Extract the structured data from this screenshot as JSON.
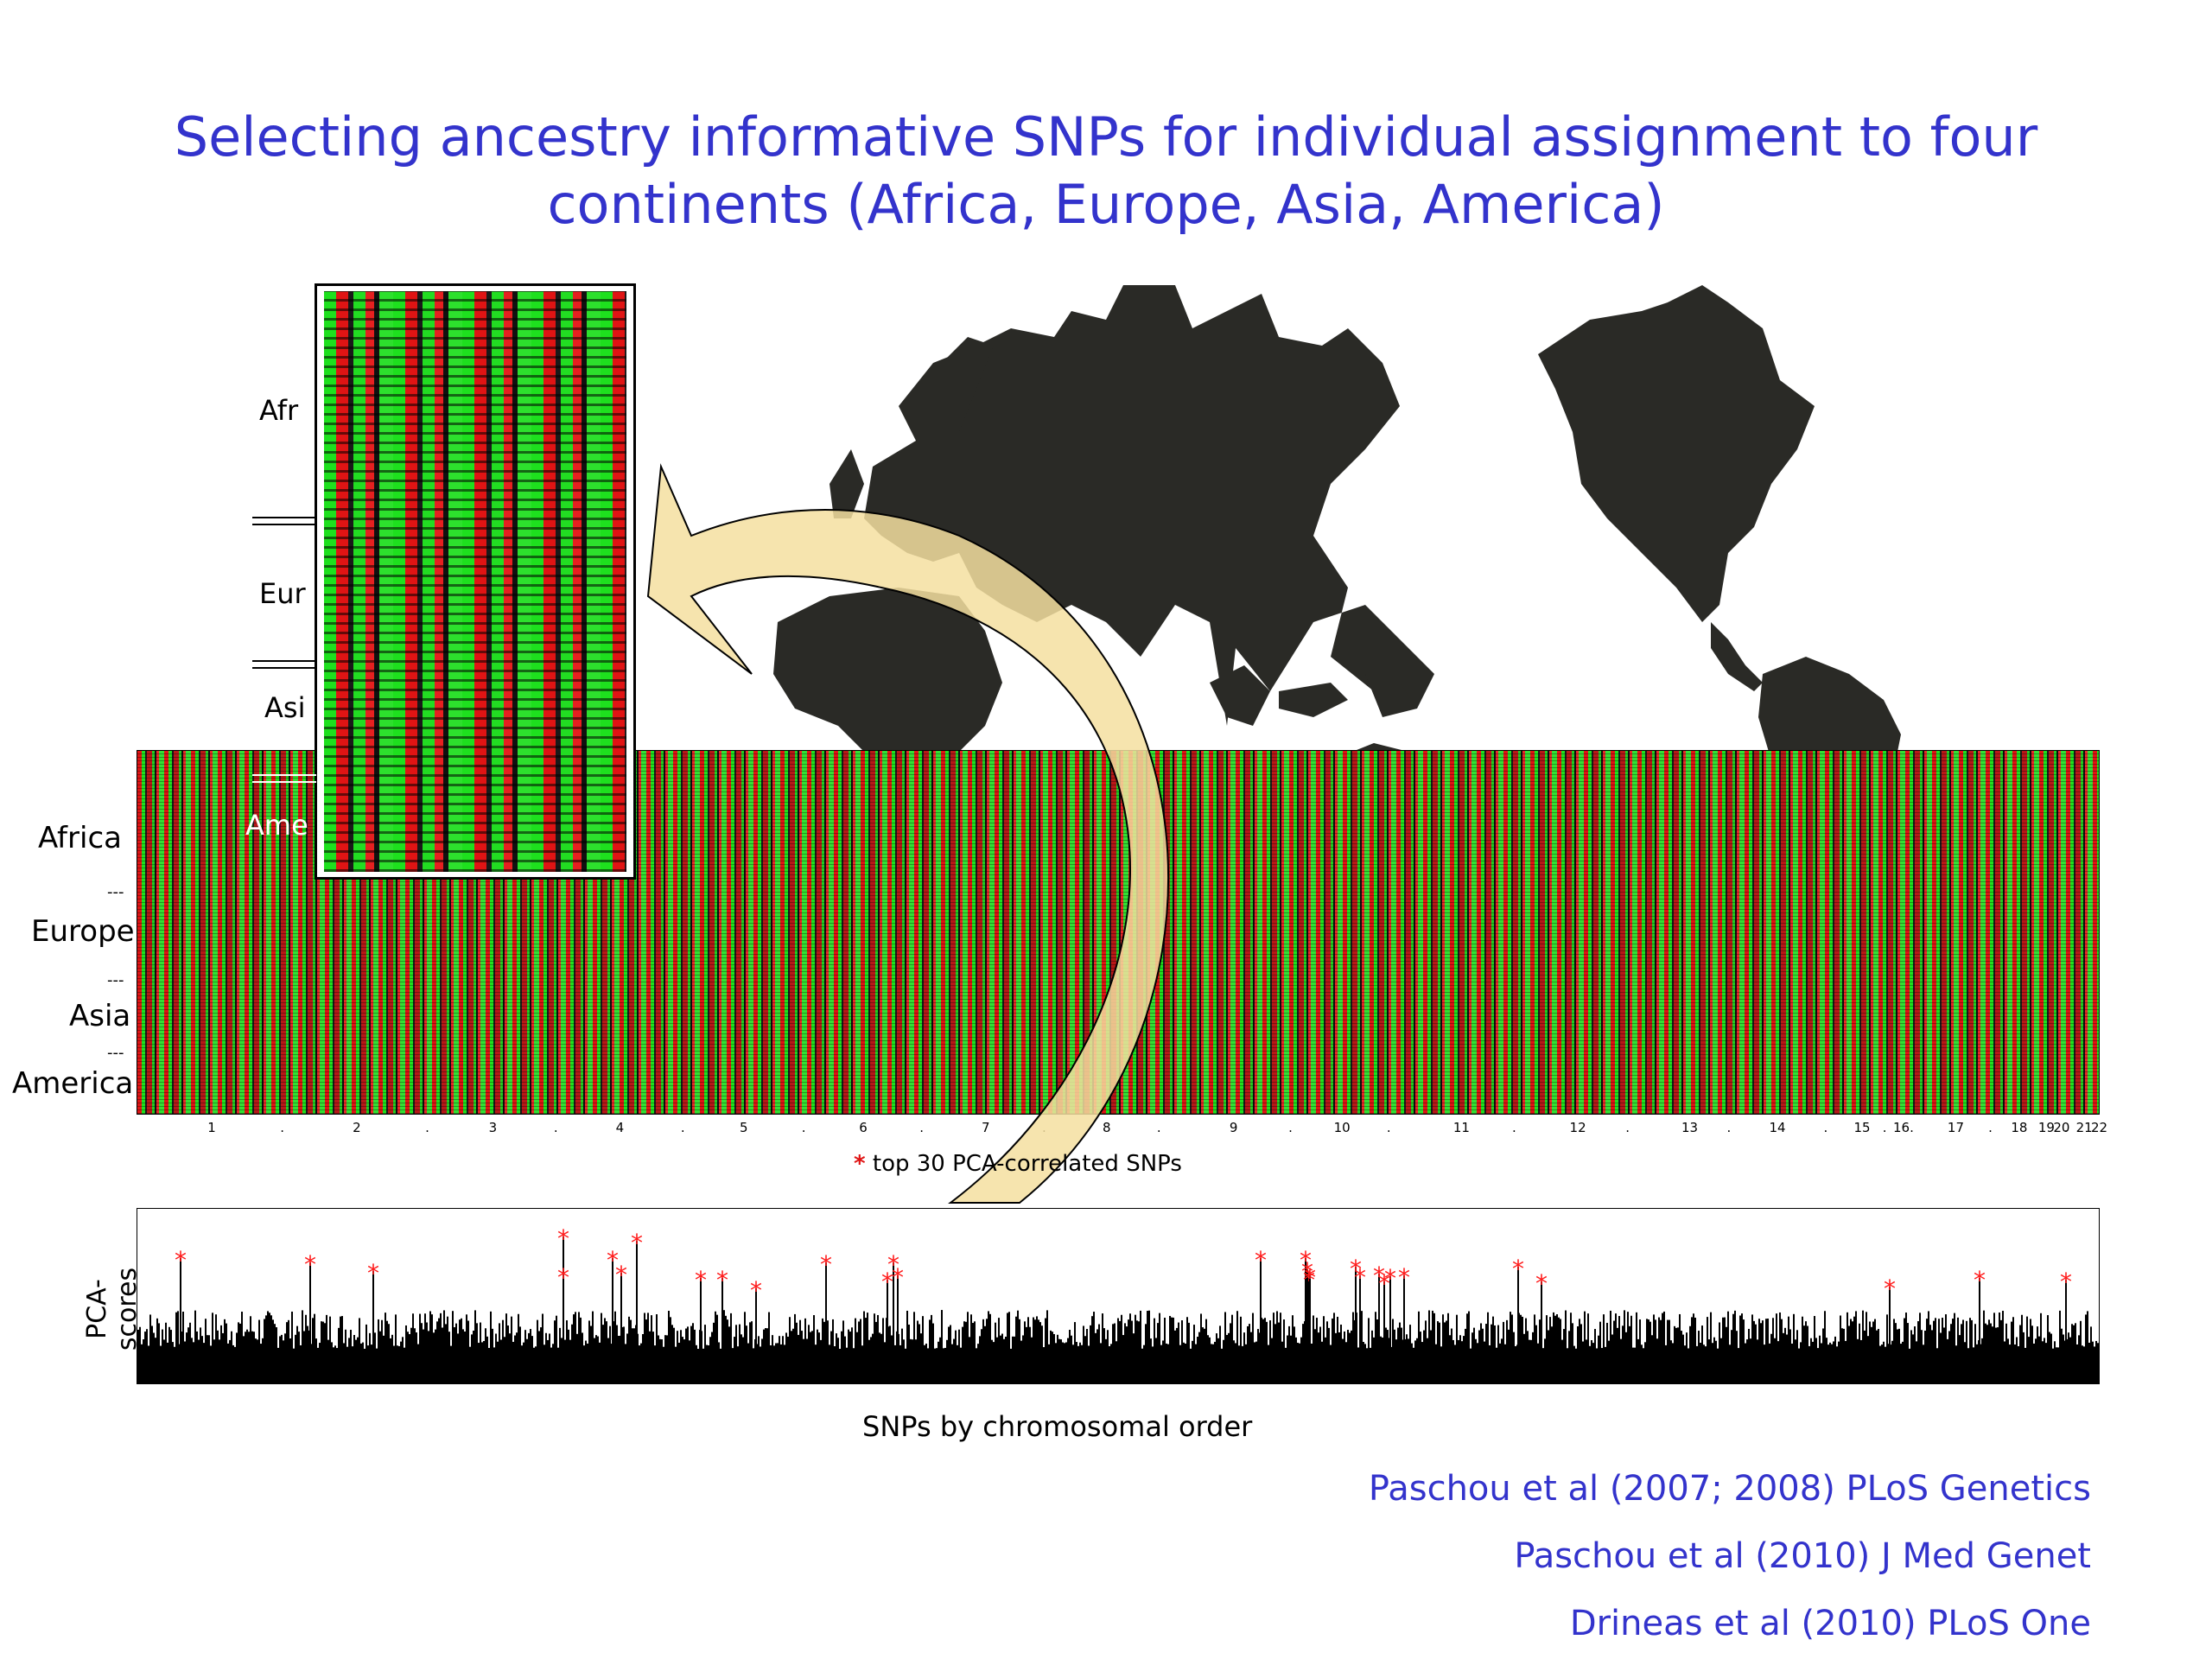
{
  "title_line1": "Selecting ancestry informative SNPs for individual assignment to four",
  "title_line2": "continents (Africa, Europe, Asia, America)",
  "inset": {
    "labels": [
      "Afr",
      "Eur",
      "Asi",
      "Ame"
    ]
  },
  "heatmap": {
    "row_labels": [
      "Africa",
      "Europe",
      "Asia",
      "America"
    ],
    "separator": "---",
    "chromosome_labels": [
      "1",
      ".",
      "2",
      ".",
      "3",
      ".",
      "4",
      ".",
      "5",
      ".",
      "6",
      ".",
      "7",
      ".",
      "8",
      ".",
      "9",
      ".",
      "10",
      ".",
      "11",
      ".",
      "12",
      ".",
      "13",
      ".",
      "14",
      ".",
      "15",
      ".",
      "16",
      ".",
      "17",
      ".",
      "18",
      "19",
      "20",
      ".",
      "21",
      "22"
    ]
  },
  "legend": {
    "star": "*",
    "text": "top 30 PCA-correlated SNPs"
  },
  "pca_plot": {
    "ylabel": "PCA-scores",
    "xlabel": "SNPs by chromosomal order"
  },
  "references": [
    "Paschou et al (2007; 2008) PLoS Genetics",
    "Paschou et al (2010) J Med Genet",
    "Drineas et al (2010) PLoS One"
  ],
  "colors": {
    "title": "#3333cc",
    "heat_green": "#1ee01e",
    "heat_red": "#e01414",
    "map": "#2a2a26",
    "arrow": "#f5dfa0"
  }
}
